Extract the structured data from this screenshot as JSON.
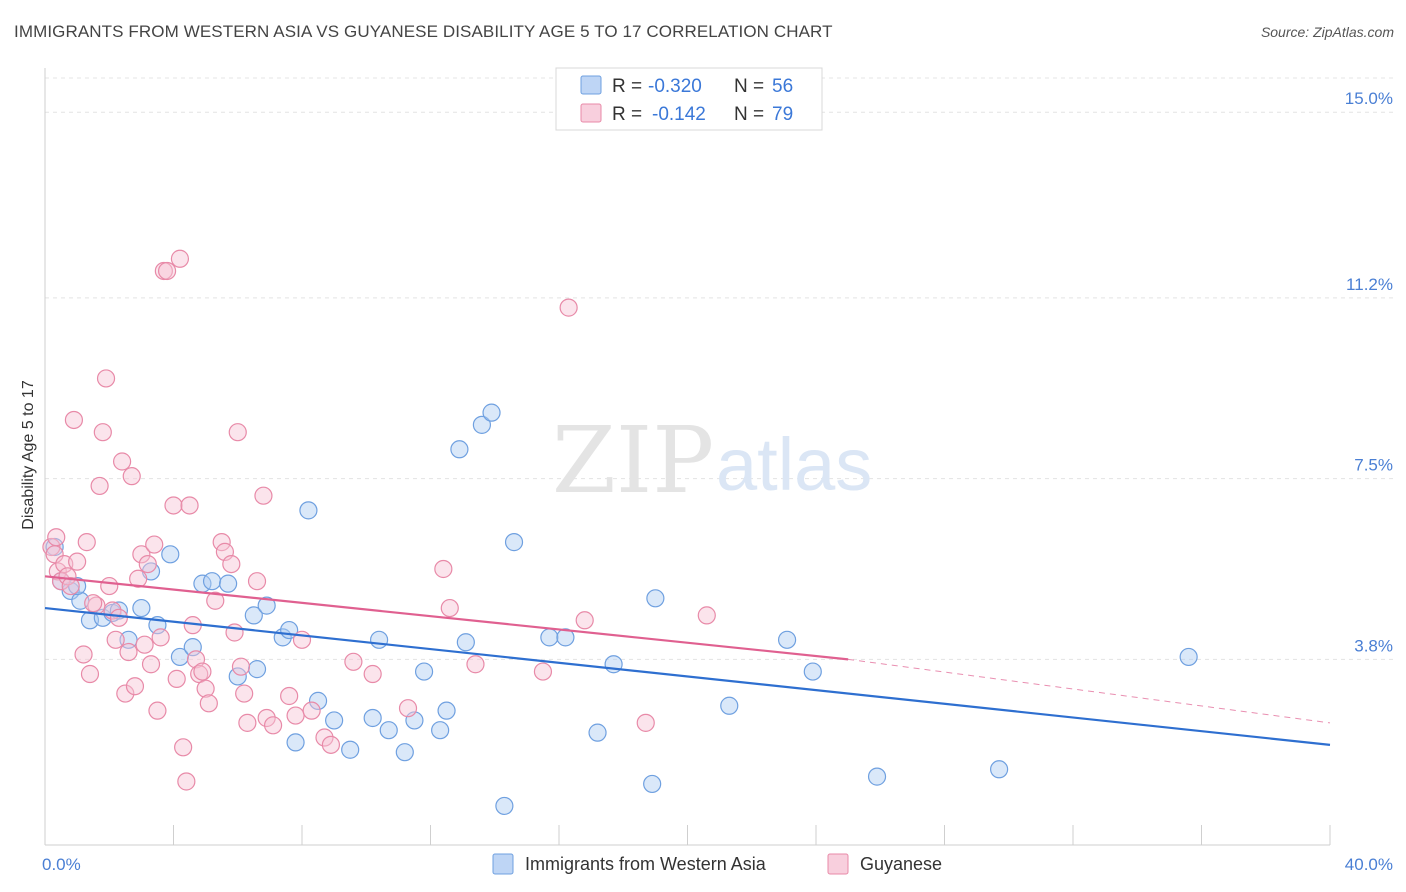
{
  "title": "IMMIGRANTS FROM WESTERN ASIA VS GUYANESE DISABILITY AGE 5 TO 17 CORRELATION CHART",
  "source": "Source: ZipAtlas.com",
  "watermark": {
    "zip": "ZIP",
    "atlas": "atlas"
  },
  "legend": {
    "rows": [
      {
        "r_label": "R =",
        "r_value": "-0.320",
        "n_label": "N =",
        "n_value": "56"
      },
      {
        "r_label": "R =",
        "r_value": "-0.142",
        "n_label": "N =",
        "n_value": "79"
      }
    ]
  },
  "chart_data": {
    "type": "scatter",
    "ylabel": "Disability Age 5 to 17",
    "xlim": [
      0,
      40
    ],
    "ylim": [
      0,
      15.7
    ],
    "y_ticks": [
      {
        "value": 3.8,
        "label": "3.8%"
      },
      {
        "value": 7.5,
        "label": "7.5%"
      },
      {
        "value": 11.2,
        "label": "11.2%"
      },
      {
        "value": 15.0,
        "label": "15.0%"
      }
    ],
    "x_tick_labels": {
      "min": "0.0%",
      "max": "40.0%"
    },
    "grid": true,
    "legend_position": "top-center",
    "series": [
      {
        "name": "Immigrants from Western Asia",
        "color": "#6fa0e0",
        "fill": "#aecbf2",
        "trend": {
          "x": [
            0,
            40
          ],
          "y": [
            4.85,
            2.05
          ],
          "color": "#2e6fd0"
        },
        "points": [
          [
            0.3,
            6.1
          ],
          [
            0.5,
            5.4
          ],
          [
            0.8,
            5.2
          ],
          [
            1.1,
            5.0
          ],
          [
            1.4,
            4.6
          ],
          [
            1.8,
            4.65
          ],
          [
            2.1,
            4.75
          ],
          [
            2.3,
            4.8
          ],
          [
            2.6,
            4.2
          ],
          [
            3.0,
            4.85
          ],
          [
            3.3,
            5.6
          ],
          [
            3.5,
            4.5
          ],
          [
            3.9,
            5.95
          ],
          [
            4.2,
            3.85
          ],
          [
            4.6,
            4.05
          ],
          [
            4.9,
            5.35
          ],
          [
            5.2,
            5.4
          ],
          [
            5.7,
            5.35
          ],
          [
            6.0,
            3.45
          ],
          [
            6.5,
            4.7
          ],
          [
            6.6,
            3.6
          ],
          [
            6.9,
            4.9
          ],
          [
            7.4,
            4.25
          ],
          [
            7.6,
            4.4
          ],
          [
            7.8,
            2.1
          ],
          [
            8.2,
            6.85
          ],
          [
            8.5,
            2.95
          ],
          [
            9.0,
            2.55
          ],
          [
            9.5,
            1.95
          ],
          [
            10.2,
            2.6
          ],
          [
            10.4,
            4.2
          ],
          [
            10.7,
            2.35
          ],
          [
            11.2,
            1.9
          ],
          [
            11.5,
            2.55
          ],
          [
            11.8,
            3.55
          ],
          [
            12.3,
            2.35
          ],
          [
            12.5,
            2.75
          ],
          [
            12.9,
            8.1
          ],
          [
            13.1,
            4.15
          ],
          [
            13.6,
            8.6
          ],
          [
            13.9,
            8.85
          ],
          [
            14.3,
            0.8
          ],
          [
            14.6,
            6.2
          ],
          [
            15.7,
            4.25
          ],
          [
            16.2,
            4.25
          ],
          [
            17.2,
            2.3
          ],
          [
            17.7,
            3.7
          ],
          [
            18.9,
            1.25
          ],
          [
            19.0,
            5.05
          ],
          [
            21.3,
            2.85
          ],
          [
            23.1,
            4.2
          ],
          [
            23.9,
            3.55
          ],
          [
            25.9,
            1.4
          ],
          [
            29.7,
            1.55
          ],
          [
            35.6,
            3.85
          ],
          [
            1.0,
            5.3
          ]
        ]
      },
      {
        "name": "Guyanese",
        "color": "#e88aa8",
        "fill": "#f6c3d4",
        "trend": {
          "x": [
            0,
            25
          ],
          "y": [
            5.5,
            3.8
          ],
          "color": "#e06090"
        },
        "trend_extension": {
          "x": [
            25,
            40
          ],
          "y": [
            3.8,
            2.5
          ]
        },
        "points": [
          [
            0.2,
            6.1
          ],
          [
            0.3,
            5.95
          ],
          [
            0.4,
            5.6
          ],
          [
            0.5,
            5.4
          ],
          [
            0.6,
            5.75
          ],
          [
            0.7,
            5.5
          ],
          [
            0.8,
            5.3
          ],
          [
            0.9,
            8.7
          ],
          [
            1.0,
            5.8
          ],
          [
            1.2,
            3.9
          ],
          [
            1.3,
            6.2
          ],
          [
            1.4,
            3.5
          ],
          [
            1.6,
            4.9
          ],
          [
            1.7,
            7.35
          ],
          [
            1.8,
            8.45
          ],
          [
            1.9,
            9.55
          ],
          [
            2.0,
            5.3
          ],
          [
            2.1,
            4.8
          ],
          [
            2.2,
            4.2
          ],
          [
            2.3,
            4.65
          ],
          [
            2.4,
            7.85
          ],
          [
            2.5,
            3.1
          ],
          [
            2.6,
            3.95
          ],
          [
            2.7,
            7.55
          ],
          [
            2.8,
            3.25
          ],
          [
            2.9,
            5.45
          ],
          [
            3.0,
            5.95
          ],
          [
            3.1,
            4.1
          ],
          [
            3.2,
            5.75
          ],
          [
            3.3,
            3.7
          ],
          [
            3.4,
            6.15
          ],
          [
            3.5,
            2.75
          ],
          [
            3.6,
            4.25
          ],
          [
            3.7,
            11.75
          ],
          [
            3.8,
            11.75
          ],
          [
            4.0,
            6.95
          ],
          [
            4.1,
            3.4
          ],
          [
            4.2,
            12.0
          ],
          [
            4.3,
            2.0
          ],
          [
            4.4,
            1.3
          ],
          [
            4.5,
            6.95
          ],
          [
            4.6,
            4.5
          ],
          [
            4.7,
            3.8
          ],
          [
            4.8,
            3.5
          ],
          [
            5.0,
            3.2
          ],
          [
            5.1,
            2.9
          ],
          [
            5.3,
            5.0
          ],
          [
            5.5,
            6.2
          ],
          [
            5.6,
            6.0
          ],
          [
            5.8,
            5.75
          ],
          [
            5.9,
            4.35
          ],
          [
            6.0,
            8.45
          ],
          [
            6.1,
            3.65
          ],
          [
            6.2,
            3.1
          ],
          [
            6.3,
            2.5
          ],
          [
            6.6,
            5.4
          ],
          [
            6.8,
            7.15
          ],
          [
            6.9,
            2.6
          ],
          [
            7.1,
            2.45
          ],
          [
            7.6,
            3.05
          ],
          [
            7.8,
            2.65
          ],
          [
            8.0,
            4.2
          ],
          [
            8.3,
            2.75
          ],
          [
            8.7,
            2.2
          ],
          [
            8.9,
            2.05
          ],
          [
            9.6,
            3.75
          ],
          [
            10.2,
            3.5
          ],
          [
            11.3,
            2.8
          ],
          [
            12.4,
            5.65
          ],
          [
            12.6,
            4.85
          ],
          [
            13.4,
            3.7
          ],
          [
            15.5,
            3.55
          ],
          [
            16.3,
            11.0
          ],
          [
            16.8,
            4.6
          ],
          [
            18.7,
            2.5
          ],
          [
            20.6,
            4.7
          ],
          [
            0.35,
            6.3
          ],
          [
            1.5,
            4.95
          ],
          [
            4.9,
            3.55
          ]
        ]
      }
    ]
  }
}
